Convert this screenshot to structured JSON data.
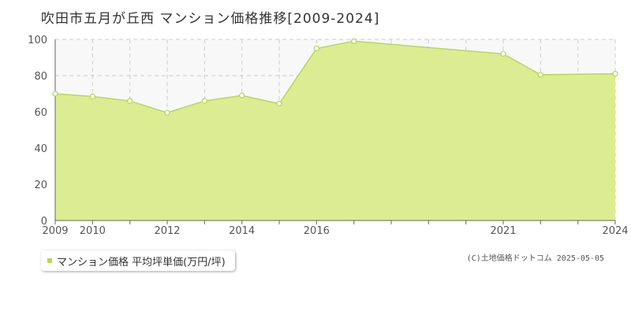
{
  "title": "吹田市五月が丘西 マンション価格推移[2009-2024]",
  "legend_label": "マンション価格 平均坪単価(万円/坪)",
  "credit": "(C)土地価格ドットコム 2025-05-05",
  "colors": {
    "area_fill": "#dcec92",
    "line": "#b8d94f",
    "point_fill": "#ffffff",
    "plot_bg": "#f8f8f8",
    "grid": "#cccccc",
    "axis": "#666666"
  },
  "chart_data": {
    "type": "area",
    "title": "吹田市五月が丘西 マンション価格推移[2009-2024]",
    "xlabel": "",
    "ylabel": "",
    "x": [
      2009,
      2010,
      2011,
      2012,
      2013,
      2014,
      2015,
      2016,
      2017,
      2021,
      2022,
      2024
    ],
    "x_tick_labels": [
      "2009",
      "2010",
      "2012",
      "2014",
      "2016",
      "2021",
      "2024"
    ],
    "xlim": [
      2009,
      2024
    ],
    "y_ticks": [
      0,
      20,
      40,
      60,
      80,
      100
    ],
    "ylim": [
      0,
      100
    ],
    "grid": true,
    "series": [
      {
        "name": "マンション価格 平均坪単価(万円/坪)",
        "values": [
          70,
          68.5,
          66,
          59.5,
          66,
          69,
          64.5,
          95,
          99,
          92,
          80.5,
          81
        ]
      }
    ]
  }
}
